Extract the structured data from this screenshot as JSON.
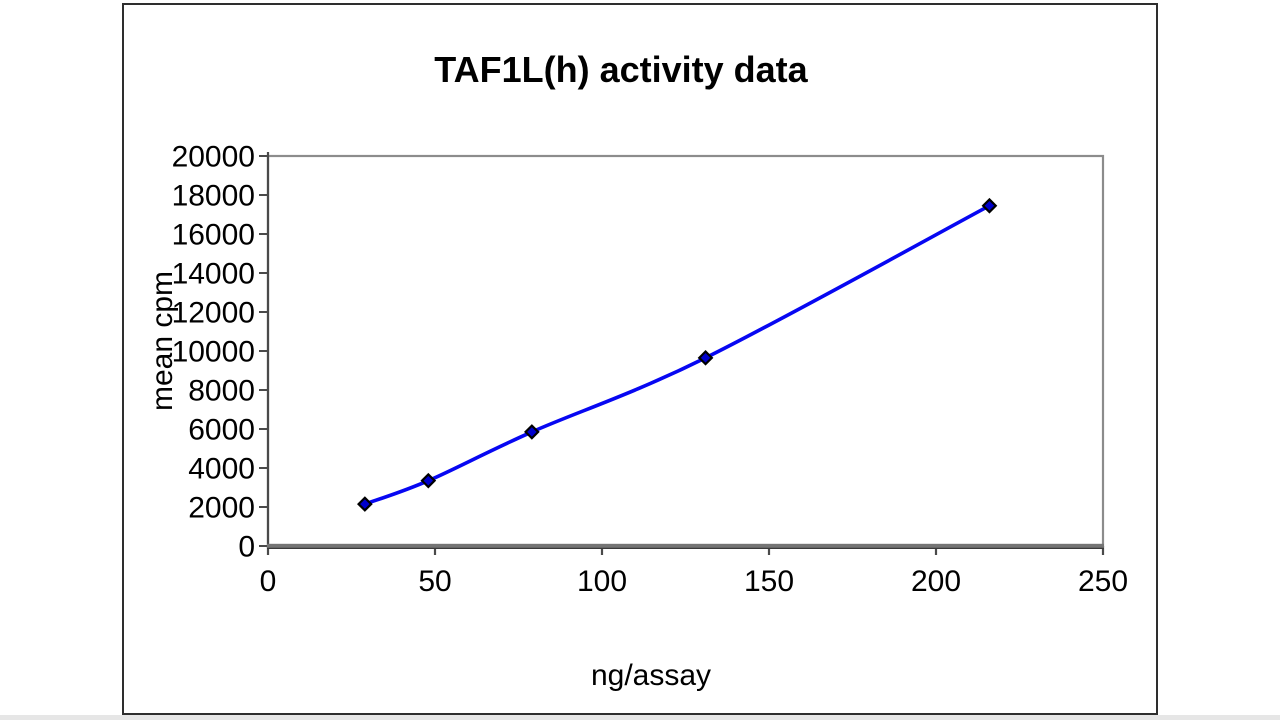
{
  "window": {
    "background": "#ffffff",
    "frame_border_color": "#2e2e2e",
    "bottom_strip_color": "#e6e6e6"
  },
  "chart_data": {
    "type": "line",
    "title": "TAF1L(h) activity data",
    "xlabel": "ng/assay",
    "ylabel": "mean cpm",
    "x": [
      29,
      48,
      79,
      131,
      216
    ],
    "y": [
      2150,
      3350,
      5850,
      9650,
      17450
    ],
    "xlim": [
      0,
      250
    ],
    "ylim": [
      0,
      20000
    ],
    "x_ticks": [
      0,
      50,
      100,
      150,
      200,
      250
    ],
    "y_ticks": [
      0,
      2000,
      4000,
      6000,
      8000,
      10000,
      12000,
      14000,
      16000,
      18000,
      20000
    ],
    "grid": false,
    "legend": false,
    "marker": "diamond",
    "smooth_line": true,
    "line_color": "#0707f2",
    "marker_fill": "#0000cc",
    "marker_border": "#000000",
    "plot_border_color": "#8c8c8c",
    "axis_line_color": "#4a4a4a",
    "tick_color": "#4a4a4a",
    "label_color": "#000000",
    "plot_background": "#ffffff"
  }
}
